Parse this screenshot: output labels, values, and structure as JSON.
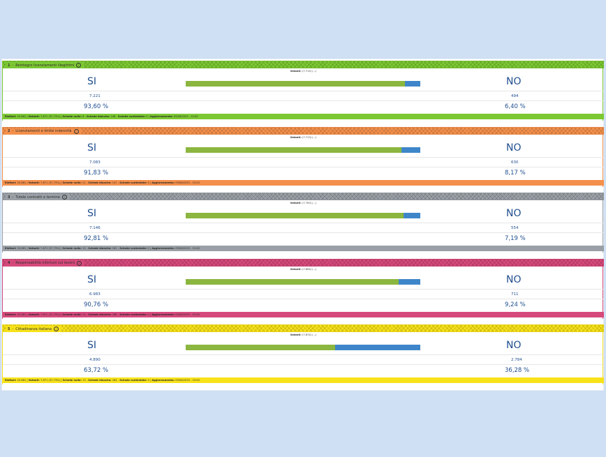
{
  "referendums": [
    {
      "number": "1",
      "title": "Reintegro licenziamenti illegittimi",
      "color": "#7cc832",
      "border": "#7cc832",
      "votanti_label": "Votanti:",
      "votanti_value": "(7.715) (...)",
      "si_label": "SI",
      "no_label": "NO",
      "si_count": "7.221",
      "no_count": "494",
      "si_pct_label": "93,60 %",
      "no_pct_label": "6,40 %",
      "si_share": 93.6,
      "footer": {
        "elettori_label": "Elettori:",
        "elettori": "20.861",
        "votanti_label": "Votanti:",
        "votanti": "7.871 (37,73%)",
        "nulle_label": "Schede nulle:",
        "nulle": "8",
        "bianche_label": "Schede bianche:",
        "bianche": "148",
        "contestate_label": "Schede contestate:",
        "contestate": "0",
        "agg_label": "Aggiornamento:",
        "agg": "09/06/2025 - 15:00"
      }
    },
    {
      "number": "2",
      "title": "Licenziamenti e limite indennità",
      "color": "#f4904b",
      "border": "#f4904b",
      "votanti_label": "Votanti:",
      "votanti_value": "(7.713) (...)",
      "si_label": "SI",
      "no_label": "NO",
      "si_count": "7.083",
      "no_count": "630",
      "si_pct_label": "91,83 %",
      "no_pct_label": "8,17 %",
      "si_share": 91.83,
      "footer": {
        "elettori_label": "Elettori:",
        "elettori": "20.861",
        "votanti_label": "Votanti:",
        "votanti": "7.871 (37,73%)",
        "nulle_label": "Schede nulle:",
        "nulle": "11",
        "bianche_label": "Schede bianche:",
        "bianche": "147",
        "contestate_label": "Schede contestate:",
        "contestate": "0",
        "agg_label": "Aggiornamento:",
        "agg": "09/06/2025 - 15:00"
      }
    },
    {
      "number": "3",
      "title": "Tutele contratti a termine",
      "color": "#9aa0a6",
      "border": "#9aa0a6",
      "votanti_label": "Votanti:",
      "votanti_value": "(7.700) (...)",
      "si_label": "SI",
      "no_label": "NO",
      "si_count": "7.146",
      "no_count": "554",
      "si_pct_label": "92,81 %",
      "no_pct_label": "7,19 %",
      "si_share": 92.81,
      "footer": {
        "elettori_label": "Elettori:",
        "elettori": "20.861",
        "votanti_label": "Votanti:",
        "votanti": "7.871 (37,73%)",
        "nulle_label": "Schede nulle:",
        "nulle": "10",
        "bianche_label": "Schede bianche:",
        "bianche": "161",
        "contestate_label": "Schede contestate:",
        "contestate": "0",
        "agg_label": "Aggiornamento:",
        "agg": "09/06/2025 - 15:00"
      }
    },
    {
      "number": "4",
      "title": "Responsabilità infortuni sul lavoro",
      "color": "#d6497b",
      "border": "#d6497b",
      "votanti_label": "Votanti:",
      "votanti_value": "(7.694) (...)",
      "si_label": "SI",
      "no_label": "NO",
      "si_count": "6.983",
      "no_count": "711",
      "si_pct_label": "90,76 %",
      "no_pct_label": "9,24 %",
      "si_share": 90.76,
      "footer": {
        "elettori_label": "Elettori:",
        "elettori": "20.861",
        "votanti_label": "Votanti:",
        "votanti": "7.871 (37,73%)",
        "nulle_label": "Schede nulle:",
        "nulle": "11",
        "bianche_label": "Schede bianche:",
        "bianche": "166",
        "contestate_label": "Schede contestate:",
        "contestate": "0",
        "agg_label": "Aggiornamento:",
        "agg": "09/06/2025 - 15:00"
      }
    },
    {
      "number": "5",
      "title": "Cittadinanza italiana",
      "color": "#f7e21a",
      "border": "#f7e21a",
      "votanti_label": "Votanti:",
      "votanti_value": "(7.674) (...)",
      "si_label": "SI",
      "no_label": "NO",
      "si_count": "4.890",
      "no_count": "2.784",
      "si_pct_label": "63,72 %",
      "no_pct_label": "36,28 %",
      "si_share": 63.72,
      "footer": {
        "elettori_label": "Elettori:",
        "elettori": "20.861",
        "votanti_label": "Votanti:",
        "votanti": "7.871 (37,73%)",
        "nulle_label": "Schede nulle:",
        "nulle": "13",
        "bianche_label": "Schede bianche:",
        "bianche": "184",
        "contestate_label": "Schede contestate:",
        "contestate": "0",
        "agg_label": "Aggiornamento:",
        "agg": "09/06/2025 - 15:00"
      }
    }
  ],
  "icons": {
    "info": "info-circle-icon",
    "info_glyph": "i"
  },
  "colors": {
    "si_bar": "#8bb63f",
    "no_bar": "#3e86c9",
    "text": "#1f4e8f",
    "background": "#cfe0f4"
  }
}
